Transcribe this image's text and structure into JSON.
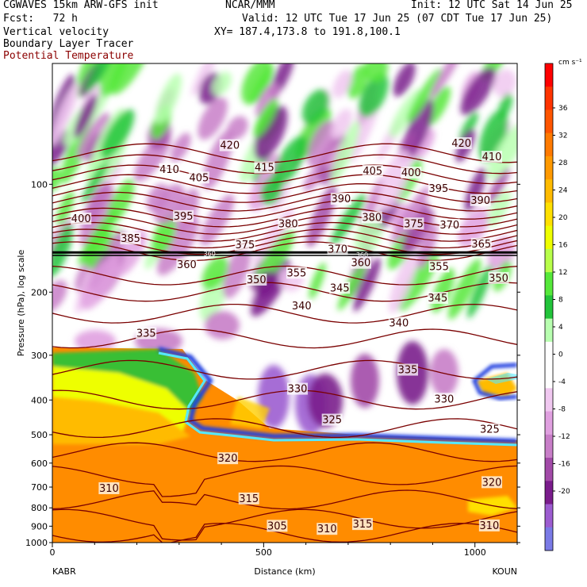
{
  "header": {
    "model": "CGWAVES 15km ARW-GFS init",
    "org": "NCAR/MMM",
    "init": "Init: 12 UTC Sat 14 Jun 25",
    "fcst": "Fcst:   72 h",
    "valid": "Valid: 12 UTC Tue 17 Jun 25 (07 CDT Tue 17 Jun 25)",
    "xy": "XY= 187.4,173.8 to 191.8,100.1",
    "fields": [
      "Vertical velocity",
      "Boundary Layer Tracer",
      "Potential Temperature"
    ],
    "theta_color": "#8b0000"
  },
  "chart_data": {
    "type": "heatmap",
    "title": "Vertical velocity",
    "xlabel": "Distance (km)",
    "ylabel": "Pressure (hPa), log scale",
    "x_ticks": [
      0,
      500,
      1000
    ],
    "xlim": [
      0,
      1100
    ],
    "y_ticks": [
      100,
      200,
      300,
      400,
      500,
      600,
      700,
      800,
      900,
      1000
    ],
    "y_scale": "log",
    "ylim": [
      1000,
      46
    ],
    "x_endpoints": {
      "left": "KABR",
      "right": "KOUN"
    },
    "colorbar": {
      "units": "cm s⁻¹",
      "labels": [
        36,
        32,
        28,
        24,
        20,
        16,
        12,
        8,
        4,
        0,
        -4,
        -8,
        -12,
        -16,
        -20
      ],
      "colors": [
        "#ff0000",
        "#ff3300",
        "#ff5500",
        "#ff7a00",
        "#ff9900",
        "#ffbb00",
        "#ffe000",
        "#eeff00",
        "#b8ff4a",
        "#55e83a",
        "#22c43a",
        "#b8ffb0",
        "#ffffff",
        "#ffffff",
        "#f0c8f0",
        "#e0a0e0",
        "#c87ec8",
        "#a24aa8",
        "#7a1c8c",
        "#9c5cd0",
        "#7a7ae6"
      ]
    },
    "theta_contours": {
      "units": "K",
      "labels": [
        {
          "v": 420,
          "x": 420,
          "p": 78
        },
        {
          "v": 420,
          "x": 968,
          "p": 77
        },
        {
          "v": 410,
          "x": 277,
          "p": 91
        },
        {
          "v": 415,
          "x": 502,
          "p": 90
        },
        {
          "v": 405,
          "x": 347,
          "p": 96
        },
        {
          "v": 405,
          "x": 758,
          "p": 92
        },
        {
          "v": 400,
          "x": 849,
          "p": 93
        },
        {
          "v": 410,
          "x": 1040,
          "p": 84
        },
        {
          "v": 395,
          "x": 310,
          "p": 123
        },
        {
          "v": 390,
          "x": 683,
          "p": 110
        },
        {
          "v": 395,
          "x": 914,
          "p": 103
        },
        {
          "v": 390,
          "x": 1013,
          "p": 111
        },
        {
          "v": 400,
          "x": 68,
          "p": 125
        },
        {
          "v": 380,
          "x": 558,
          "p": 129
        },
        {
          "v": 380,
          "x": 756,
          "p": 124
        },
        {
          "v": 375,
          "x": 855,
          "p": 129
        },
        {
          "v": 370,
          "x": 940,
          "p": 130
        },
        {
          "v": 385,
          "x": 185,
          "p": 142
        },
        {
          "v": 375,
          "x": 456,
          "p": 148
        },
        {
          "v": 370,
          "x": 675,
          "p": 152
        },
        {
          "v": 365,
          "x": 1015,
          "p": 147
        },
        {
          "v": 360,
          "x": 318,
          "p": 168
        },
        {
          "v": 350,
          "x": 483,
          "p": 185
        },
        {
          "v": 355,
          "x": 578,
          "p": 177
        },
        {
          "v": 360,
          "x": 730,
          "p": 166
        },
        {
          "v": 355,
          "x": 915,
          "p": 170
        },
        {
          "v": 350,
          "x": 1056,
          "p": 183
        },
        {
          "v": 345,
          "x": 680,
          "p": 195
        },
        {
          "v": 340,
          "x": 590,
          "p": 219
        },
        {
          "v": 345,
          "x": 912,
          "p": 208
        },
        {
          "v": 340,
          "x": 820,
          "p": 244
        },
        {
          "v": 335,
          "x": 222,
          "p": 261
        },
        {
          "v": 335,
          "x": 841,
          "p": 330
        },
        {
          "v": 330,
          "x": 580,
          "p": 373
        },
        {
          "v": 330,
          "x": 927,
          "p": 398
        },
        {
          "v": 325,
          "x": 662,
          "p": 455
        },
        {
          "v": 325,
          "x": 1035,
          "p": 484
        },
        {
          "v": 320,
          "x": 415,
          "p": 583
        },
        {
          "v": 320,
          "x": 1040,
          "p": 680
        },
        {
          "v": 315,
          "x": 465,
          "p": 755
        },
        {
          "v": 310,
          "x": 134,
          "p": 707
        },
        {
          "v": 305,
          "x": 532,
          "p": 900
        },
        {
          "v": 310,
          "x": 650,
          "p": 918
        },
        {
          "v": 315,
          "x": 734,
          "p": 890
        },
        {
          "v": 310,
          "x": 1034,
          "p": 898
        }
      ],
      "tropopause_labels": [
        {
          "v": 360,
          "x": 372,
          "p": 156
        },
        {
          "v": 360,
          "x": 733,
          "p": 157
        }
      ]
    }
  }
}
